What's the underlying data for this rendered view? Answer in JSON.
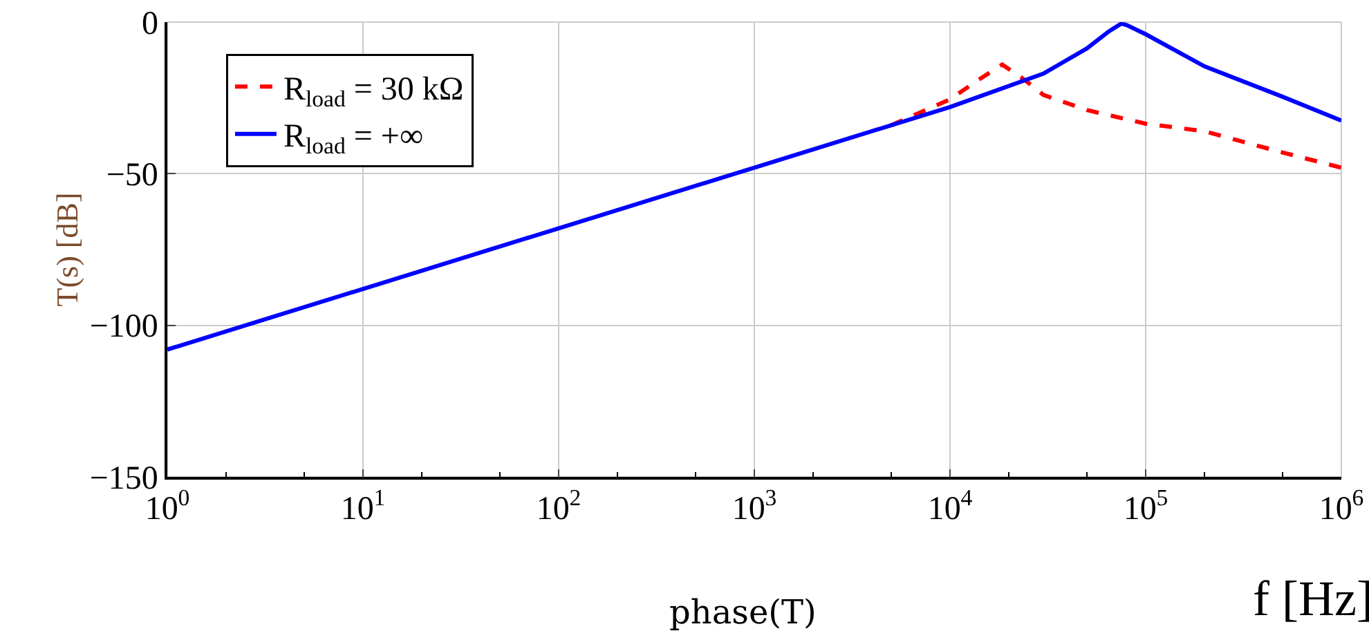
{
  "chart_data": {
    "type": "line",
    "ylabel": "T(s) [dB]",
    "xlabel": "f [Hz]",
    "annotations": [
      "phase(T)"
    ],
    "log": "x",
    "xlim": [
      1,
      1000000
    ],
    "ylim": [
      -150,
      0
    ],
    "xticks": [
      {
        "value": 1,
        "label": "10$^{0}$"
      },
      {
        "value": 10,
        "label": "10$^{1}$"
      },
      {
        "value": 100,
        "label": "10$^{2}$"
      },
      {
        "value": 1000,
        "label": "10$^{3}$"
      },
      {
        "value": 10000,
        "label": "10$^{4}$"
      },
      {
        "value": 100000,
        "label": "10$^{5}$"
      },
      {
        "value": 1000000,
        "label": "10$^{6}$"
      }
    ],
    "yticks": [
      -150,
      -100,
      -50,
      0
    ],
    "grid": true,
    "legend": "top left",
    "marker": "none",
    "series": [
      {
        "name": "R$_{load}$ = 30 kΩ",
        "color": "#ff0000",
        "line_style": "dashed",
        "x": [
          5000,
          10000,
          14000,
          18500,
          24000,
          30000,
          50000,
          100000,
          200000,
          500000,
          1000000
        ],
        "values": [
          -34,
          -25.5,
          -19,
          -14,
          -19,
          -24,
          -29,
          -33.5,
          -36,
          -43,
          -48
        ]
      },
      {
        "name": "R$_{load}$ = +∞",
        "color": "#0000ff",
        "line_style": "solid",
        "x": [
          1,
          10,
          100,
          1000,
          10000,
          30000,
          50000,
          65000,
          75000,
          80000,
          100000,
          200000,
          500000,
          1000000
        ],
        "values": [
          -108,
          -88,
          -68,
          -48,
          -28,
          -17,
          -8.7,
          -3,
          -0.5,
          -1,
          -4,
          -14.6,
          -24.6,
          -32.5
        ]
      }
    ]
  }
}
